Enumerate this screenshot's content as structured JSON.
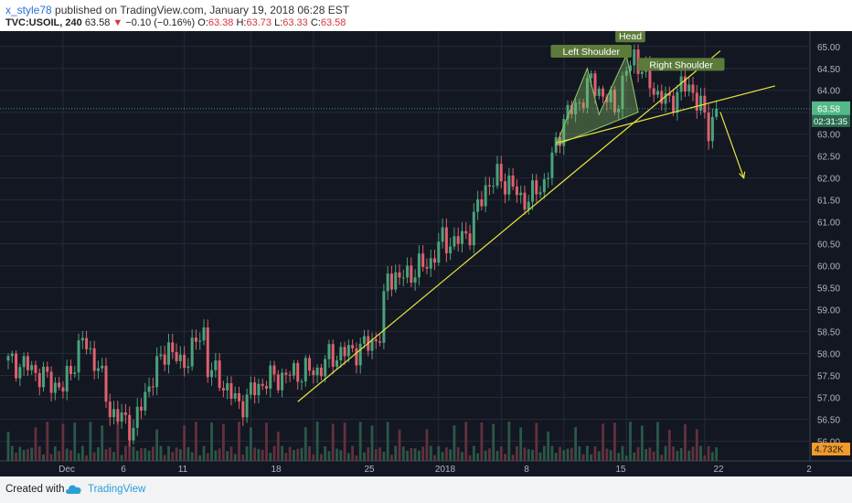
{
  "header": {
    "author": "x_style78",
    "published": "published on TradingView.com, January 19, 2018 06:28 EST",
    "symbol": "TVC:USOIL, 240",
    "last": "63.58",
    "change": "−0.10 (−0.16%)",
    "o_label": "O:",
    "o_value": "63.38",
    "h_label": "H:",
    "h_value": "63.73",
    "l_label": "L:",
    "l_value": "63.33",
    "c_label": "C:",
    "c_value": "63.58"
  },
  "footer": {
    "created": "Created with",
    "brand": "TradingView"
  },
  "colors": {
    "up": "#4aa27a",
    "down": "#e0606d",
    "background": "#131722",
    "grid": "#252a36",
    "trendline": "#e8e63c",
    "pattern": "#8fc86a",
    "last_price": "#53b987",
    "volume_label": "#f39b2a"
  },
  "chart_data": {
    "type": "candlestick",
    "y_axis": {
      "side": "right",
      "ylim": [
        55.55,
        65.35
      ],
      "ticks": [
        "65.00",
        "64.50",
        "64.00",
        "63.50",
        "63.00",
        "62.50",
        "62.00",
        "61.50",
        "61.00",
        "60.50",
        "60.00",
        "59.50",
        "59.00",
        "58.50",
        "58.00",
        "57.50",
        "57.00",
        "56.50",
        "56.00"
      ]
    },
    "x_axis": {
      "ticks": [
        "Dec",
        "6",
        "11",
        "18",
        "25",
        "2018",
        "8",
        "15",
        "22",
        "2"
      ]
    },
    "last_price_label": "63.58",
    "countdown_label": "02:31:35",
    "volume_label": "4.732K",
    "ohlc_anchors": [
      {
        "bar": 0,
        "close": 57.8
      },
      {
        "bar": 5,
        "close": 57.7
      },
      {
        "bar": 10,
        "close": 57.4
      },
      {
        "bar": 14,
        "close": 57.2
      },
      {
        "bar": 19,
        "close": 58.3
      },
      {
        "bar": 23,
        "close": 57.7
      },
      {
        "bar": 26,
        "close": 56.7
      },
      {
        "bar": 29,
        "close": 56.5
      },
      {
        "bar": 32,
        "close": 56.3
      },
      {
        "bar": 36,
        "close": 57.3
      },
      {
        "bar": 41,
        "close": 58.2
      },
      {
        "bar": 44,
        "close": 57.7
      },
      {
        "bar": 50,
        "close": 58.5
      },
      {
        "bar": 51,
        "close": 57.7
      },
      {
        "bar": 56,
        "close": 57.2
      },
      {
        "bar": 59,
        "close": 56.8
      },
      {
        "bar": 62,
        "close": 57.1
      },
      {
        "bar": 66,
        "close": 57.4
      },
      {
        "bar": 71,
        "close": 57.5
      },
      {
        "bar": 76,
        "close": 57.6
      },
      {
        "bar": 79,
        "close": 57.6
      },
      {
        "bar": 82,
        "close": 57.9
      },
      {
        "bar": 85,
        "close": 58.0
      },
      {
        "bar": 90,
        "close": 58.1
      },
      {
        "bar": 95,
        "close": 58.4
      },
      {
        "bar": 97,
        "close": 59.8
      },
      {
        "bar": 100,
        "close": 59.7
      },
      {
        "bar": 104,
        "close": 59.9
      },
      {
        "bar": 108,
        "close": 60.1
      },
      {
        "bar": 111,
        "close": 60.6
      },
      {
        "bar": 114,
        "close": 60.5
      },
      {
        "bar": 118,
        "close": 60.8
      },
      {
        "bar": 122,
        "close": 61.8
      },
      {
        "bar": 125,
        "close": 62.0
      },
      {
        "bar": 128,
        "close": 61.9
      },
      {
        "bar": 131,
        "close": 61.5
      },
      {
        "bar": 134,
        "close": 61.6
      },
      {
        "bar": 137,
        "close": 61.9
      },
      {
        "bar": 140,
        "close": 62.7
      },
      {
        "bar": 142,
        "close": 63.4
      },
      {
        "bar": 145,
        "close": 63.6
      },
      {
        "bar": 149,
        "close": 64.2
      },
      {
        "bar": 151,
        "close": 64.0
      },
      {
        "bar": 155,
        "close": 63.6
      },
      {
        "bar": 158,
        "close": 64.4
      },
      {
        "bar": 160,
        "close": 64.8
      },
      {
        "bar": 163,
        "close": 64.3
      },
      {
        "bar": 166,
        "close": 63.9
      },
      {
        "bar": 169,
        "close": 63.7
      },
      {
        "bar": 172,
        "close": 64.1
      },
      {
        "bar": 175,
        "close": 64.0
      },
      {
        "bar": 177,
        "close": 63.6
      },
      {
        "bar": 179,
        "close": 63.1
      },
      {
        "bar": 181,
        "close": 63.58
      }
    ],
    "annotations": {
      "labels": [
        "Left Shoulder",
        "Head",
        "Right Shoulder"
      ]
    }
  }
}
